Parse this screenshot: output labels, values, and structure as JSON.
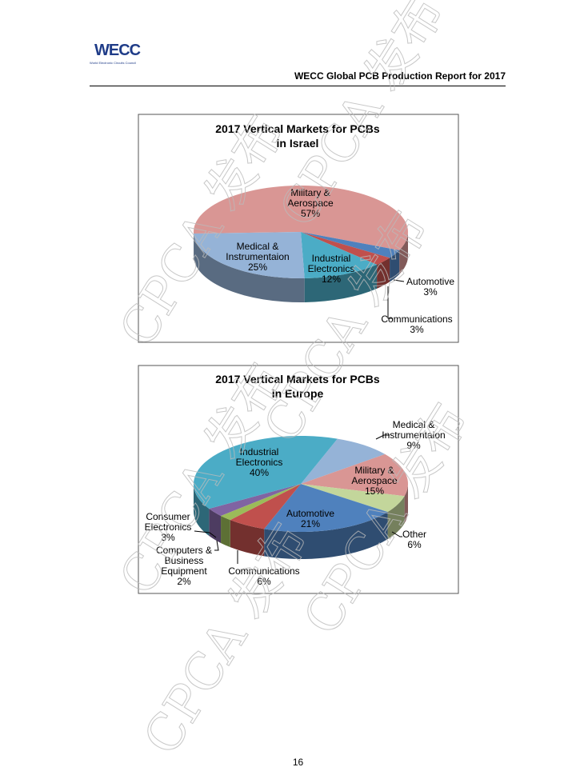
{
  "header": {
    "logo_text": "WECC",
    "logo_subtitle": "World Electronic Circuits Council",
    "report_title": "WECC Global PCB Production Report for 2017"
  },
  "watermark": "CPCA 发布",
  "page_number": "16",
  "chart_data": [
    {
      "type": "pie",
      "title": "2017 Vertical Markets for PCBs",
      "subtitle": "in Israel",
      "legend": "none",
      "style": "3d",
      "slices": [
        {
          "name": "Military & Aerospace",
          "lines": [
            "Military &",
            "Aerospace"
          ],
          "value": 57,
          "label": "57%",
          "color": "#D99694"
        },
        {
          "name": "Automotive",
          "lines": [
            "Automotive"
          ],
          "value": 3,
          "label": "3%",
          "color": "#4F81BD"
        },
        {
          "name": "Communications",
          "lines": [
            "Communications"
          ],
          "value": 3,
          "label": "3%",
          "color": "#C0504D"
        },
        {
          "name": "Industrial Electronics",
          "lines": [
            "Industrial",
            "Electronics"
          ],
          "value": 12,
          "label": "12%",
          "color": "#4BACC6"
        },
        {
          "name": "Medical & Instrumentaion",
          "lines": [
            "Medical &",
            "Instrumentaion"
          ],
          "value": 25,
          "label": "25%",
          "color": "#95B3D7"
        }
      ]
    },
    {
      "type": "pie",
      "title": "2017 Vertical Markets for PCBs",
      "subtitle": "in Europe",
      "legend": "none",
      "style": "3d",
      "slices": [
        {
          "name": "Medical & Instrumentaion",
          "lines": [
            "Medical &",
            "Instrumentaion"
          ],
          "value": 9,
          "label": "9%",
          "color": "#95B3D7"
        },
        {
          "name": "Military & Aerospace",
          "lines": [
            "Military &",
            "Aerospace"
          ],
          "value": 15,
          "label": "15%",
          "color": "#D99694"
        },
        {
          "name": "Other",
          "lines": [
            "Other"
          ],
          "value": 6,
          "label": "6%",
          "color": "#C3D69B"
        },
        {
          "name": "Automotive",
          "lines": [
            "Automotive"
          ],
          "value": 21,
          "label": "21%",
          "color": "#4F81BD"
        },
        {
          "name": "Communications",
          "lines": [
            "Communications"
          ],
          "value": 6,
          "label": "6%",
          "color": "#C0504D"
        },
        {
          "name": "Computers & Business Equipment",
          "lines": [
            "Computers &",
            "Business",
            "Equipment"
          ],
          "value": 2,
          "label": "2%",
          "color": "#9BBB59"
        },
        {
          "name": "Consumer Electronics",
          "lines": [
            "Consumer",
            "Electronics"
          ],
          "value": 3,
          "label": "3%",
          "color": "#8064A2"
        },
        {
          "name": "Industrial Electronics",
          "lines": [
            "Industrial",
            "Electronics"
          ],
          "value": 40,
          "label": "40%",
          "color": "#4BACC6"
        }
      ]
    }
  ]
}
